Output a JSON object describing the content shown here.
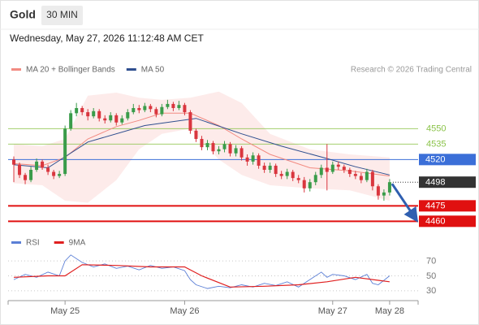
{
  "header": {
    "title": "Gold",
    "interval": "30 MIN",
    "timestamp": "Wednesday, May 27, 2026 11:12:48 AM CET"
  },
  "chart_data": [
    {
      "type": "candlestick",
      "source": "Research © 2026 Trading Central",
      "xlim": [
        -1,
        71
      ],
      "ylim": [
        4450,
        4600
      ],
      "up_color": "#3a9c4a",
      "down_color": "#d9363e",
      "open": [
        4520,
        4515,
        4505,
        4500,
        4510,
        4518,
        4512,
        4508,
        4504,
        4506,
        4550,
        4565,
        4570,
        4566,
        4562,
        4567,
        4560,
        4558,
        4563,
        4556,
        4560,
        4566,
        4570,
        4568,
        4572,
        4569,
        4564,
        4571,
        4574,
        4570,
        4573,
        4566,
        4548,
        4540,
        4532,
        4536,
        4528,
        4530,
        4535,
        4526,
        4531,
        4522,
        4518,
        4524,
        4514,
        4510,
        4514,
        4506,
        4504,
        4508,
        4502,
        4500,
        4492,
        4498,
        4505,
        4512,
        4508,
        4515,
        4513,
        4510,
        4506,
        4504,
        4500,
        4508,
        4494,
        4485,
        4488
      ],
      "high": [
        4523,
        4517,
        4507,
        4513,
        4521,
        4520,
        4515,
        4510,
        4509,
        4553,
        4568,
        4575,
        4572,
        4569,
        4570,
        4569,
        4563,
        4566,
        4565,
        4563,
        4569,
        4574,
        4573,
        4575,
        4574,
        4571,
        4574,
        4578,
        4576,
        4577,
        4575,
        4568,
        4550,
        4543,
        4539,
        4538,
        4533,
        4538,
        4537,
        4534,
        4533,
        4525,
        4527,
        4526,
        4517,
        4517,
        4516,
        4509,
        4511,
        4510,
        4505,
        4503,
        4501,
        4508,
        4515,
        4535,
        4518,
        4518,
        4515,
        4512,
        4509,
        4507,
        4511,
        4510,
        4496,
        4491,
        4501
      ],
      "low": [
        4498,
        4502,
        4496,
        4498,
        4508,
        4510,
        4505,
        4501,
        4502,
        4504,
        4548,
        4562,
        4563,
        4558,
        4560,
        4557,
        4555,
        4556,
        4553,
        4554,
        4558,
        4564,
        4565,
        4566,
        4566,
        4561,
        4562,
        4569,
        4567,
        4568,
        4563,
        4545,
        4537,
        4529,
        4529,
        4525,
        4525,
        4527,
        4523,
        4523,
        4519,
        4514,
        4515,
        4511,
        4507,
        4507,
        4503,
        4501,
        4501,
        4499,
        4497,
        4488,
        4489,
        4495,
        4502,
        4490,
        4506,
        4510,
        4507,
        4503,
        4501,
        4497,
        4498,
        4490,
        4481,
        4480,
        4485
      ],
      "close": [
        4515,
        4505,
        4500,
        4510,
        4518,
        4512,
        4508,
        4504,
        4506,
        4550,
        4565,
        4570,
        4566,
        4562,
        4567,
        4560,
        4558,
        4563,
        4556,
        4560,
        4566,
        4570,
        4568,
        4572,
        4569,
        4564,
        4571,
        4574,
        4570,
        4573,
        4566,
        4548,
        4540,
        4532,
        4536,
        4528,
        4530,
        4535,
        4526,
        4531,
        4522,
        4518,
        4524,
        4514,
        4510,
        4514,
        4506,
        4504,
        4508,
        4502,
        4500,
        4492,
        4498,
        4505,
        4512,
        4508,
        4515,
        4513,
        4510,
        4506,
        4504,
        4500,
        4508,
        4494,
        4485,
        4488,
        4498
      ],
      "series": [
        {
          "name": "MA 20 + Bollinger Bands",
          "color": "#f28b82",
          "x": [
            0,
            5,
            9,
            13,
            18,
            22,
            26,
            31,
            36,
            40,
            45,
            52,
            59,
            66
          ],
          "values": [
            4516,
            4514,
            4522,
            4540,
            4552,
            4558,
            4565,
            4565,
            4553,
            4540,
            4525,
            4512,
            4509,
            4504
          ],
          "upper": [
            4535,
            4533,
            4540,
            4582,
            4585,
            4580,
            4578,
            4580,
            4586,
            4575,
            4545,
            4530,
            4525,
            4522
          ],
          "lower": [
            4497,
            4495,
            4480,
            4478,
            4500,
            4530,
            4545,
            4550,
            4520,
            4505,
            4495,
            4492,
            4490,
            4480
          ]
        },
        {
          "name": "MA 50",
          "color": "#2f4f8f",
          "x": [
            0,
            6,
            13,
            23,
            32,
            40,
            47,
            55,
            60,
            66
          ],
          "values": [
            4515,
            4512,
            4537,
            4553,
            4560,
            4545,
            4533,
            4521,
            4513,
            4505
          ]
        }
      ],
      "levels": [
        {
          "value": 4550,
          "color": "#8bc34a",
          "style": "solid",
          "label_box": false
        },
        {
          "value": 4535,
          "color": "#8bc34a",
          "style": "solid",
          "label_box": false
        },
        {
          "value": 4520,
          "color": "#3b6fd8",
          "style": "solid",
          "label_box": true
        },
        {
          "value": 4498,
          "color": "#333333",
          "style": "dotted",
          "label_box": true
        },
        {
          "value": 4475,
          "color": "#e01010",
          "style": "thick",
          "label_box": true
        },
        {
          "value": 4460,
          "color": "#e01010",
          "style": "thick",
          "label_box": true
        }
      ]
    },
    {
      "type": "line",
      "xlim": [
        -1,
        71
      ],
      "ylim": [
        20,
        80
      ],
      "yticks": [
        30,
        50,
        70
      ],
      "grid": true,
      "xticks": [
        {
          "value": 9,
          "label": "May 25"
        },
        {
          "value": 30,
          "label": "May 26"
        },
        {
          "value": 56,
          "label": "May 27"
        },
        {
          "value": 66,
          "label": "May 28"
        }
      ],
      "series": [
        {
          "name": "RSI",
          "color": "#5b7fd6",
          "x": [
            0,
            2,
            4,
            6,
            8,
            9,
            10,
            12,
            14,
            16,
            18,
            20,
            22,
            24,
            26,
            28,
            30,
            31,
            32,
            34,
            36,
            38,
            40,
            42,
            44,
            46,
            48,
            50,
            52,
            54,
            55,
            56,
            58,
            60,
            62,
            63,
            64,
            66
          ],
          "values": [
            45,
            52,
            48,
            55,
            50,
            70,
            78,
            68,
            62,
            66,
            60,
            63,
            58,
            64,
            60,
            62,
            57,
            45,
            38,
            33,
            36,
            34,
            38,
            35,
            40,
            37,
            42,
            35,
            45,
            55,
            48,
            52,
            50,
            45,
            52,
            40,
            38,
            50
          ]
        },
        {
          "name": "9MA",
          "color": "#e02020",
          "x": [
            0,
            6,
            9,
            12,
            18,
            24,
            30,
            33,
            38,
            44,
            50,
            55,
            60,
            64,
            66
          ],
          "values": [
            48,
            50,
            50,
            65,
            64,
            62,
            62,
            50,
            35,
            36,
            38,
            42,
            48,
            44,
            42
          ]
        }
      ]
    }
  ]
}
